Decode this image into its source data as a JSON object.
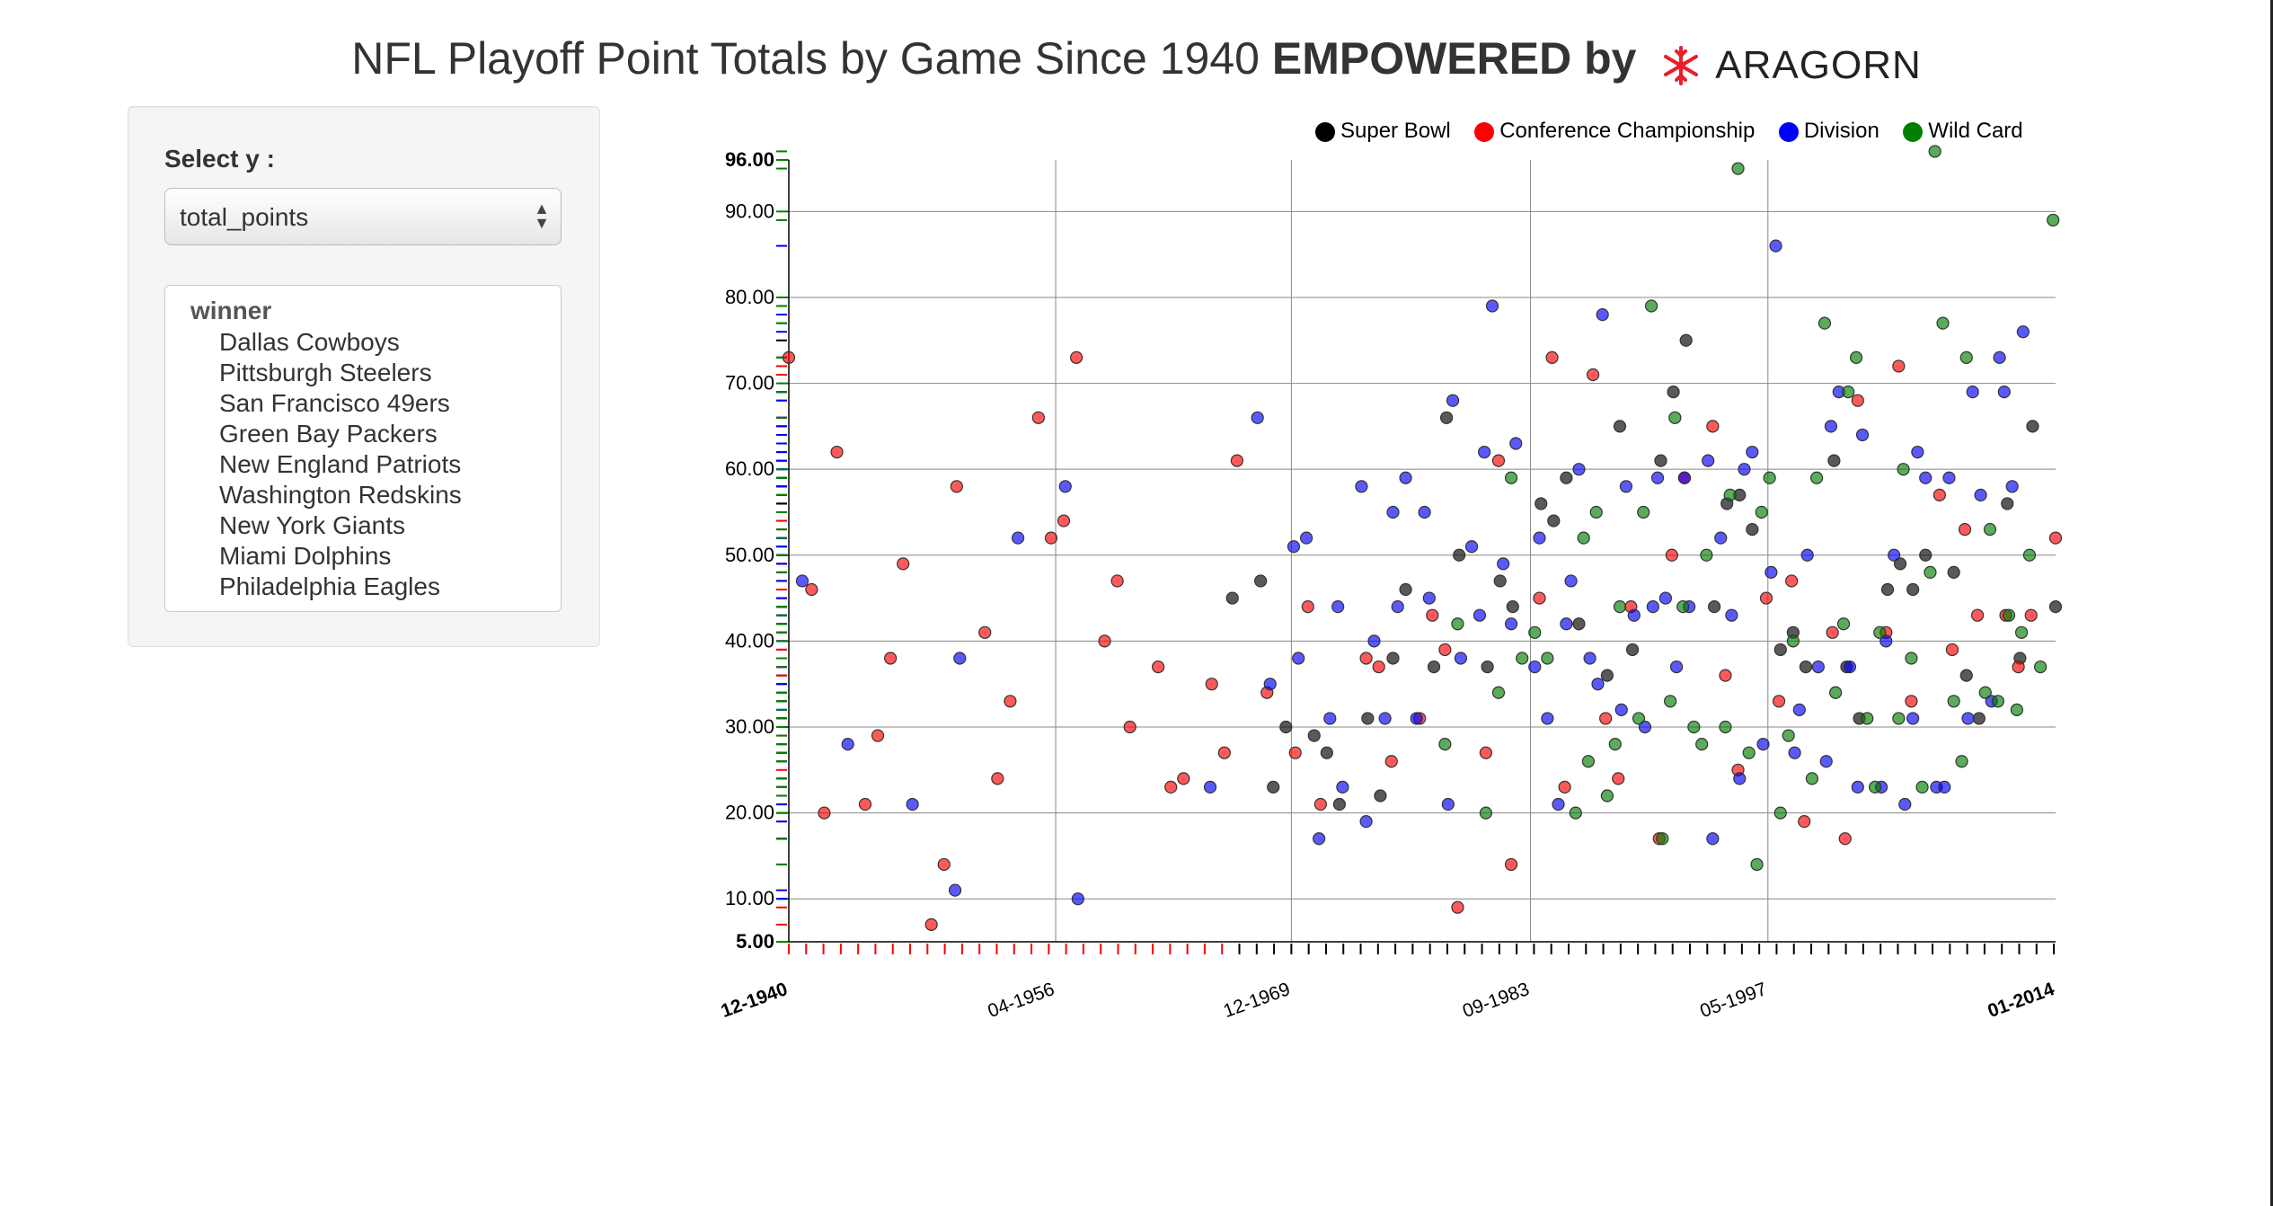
{
  "page": {
    "title_plain": "NFL Playoff Point Totals by Game Since 1940",
    "title_bold": "EMPOWERED by",
    "logo_text": "ARAGORN"
  },
  "controls": {
    "select_label": "Select y :",
    "select_value": "total_points",
    "listbox_group": "winner",
    "listbox_options": [
      "Dallas Cowboys",
      "Pittsburgh Steelers",
      "San Francisco 49ers",
      "Green Bay Packers",
      "New England Patriots",
      "Washington Redskins",
      "New York Giants",
      "Miami Dolphins",
      "Philadelphia Eagles"
    ]
  },
  "colors": {
    "super_bowl": "#000000",
    "conference": "#ff0000",
    "division": "#0000ff",
    "wild_card": "#008000",
    "logo": "#e8202a"
  },
  "chart_data": {
    "type": "scatter",
    "title": "NFL Playoff Point Totals by Game Since 1940",
    "ylim": [
      5,
      96
    ],
    "xlim": [
      1940.9,
      2014.0
    ],
    "y_ticks": [
      "5.00",
      "10.00",
      "20.00",
      "30.00",
      "40.00",
      "50.00",
      "60.00",
      "70.00",
      "80.00",
      "90.00",
      "96.00"
    ],
    "x_ticks": [
      {
        "label": "12-1940",
        "x": 1940.9
      },
      {
        "label": "04-1956",
        "x": 1956.3
      },
      {
        "label": "12-1969",
        "x": 1969.9
      },
      {
        "label": "09-1983",
        "x": 1983.7
      },
      {
        "label": "05-1997",
        "x": 1997.4
      },
      {
        "label": "01-2014",
        "x": 2014.0
      }
    ],
    "legend": {
      "position": "top-right",
      "entries": [
        "Super Bowl",
        "Conference Championship",
        "Division",
        "Wild Card"
      ]
    },
    "series": [
      {
        "name": "Super Bowl",
        "color": "#000000",
        "points": [
          [
            1966.9,
            45
          ],
          [
            1967.9,
            47
          ],
          [
            1968.9,
            23
          ],
          [
            1969.9,
            30
          ],
          [
            1970.9,
            29
          ],
          [
            1971.9,
            27
          ],
          [
            1972.9,
            21
          ],
          [
            1973.9,
            31
          ],
          [
            1974.9,
            22
          ],
          [
            1975.9,
            38
          ],
          [
            1976.9,
            46
          ],
          [
            1977.9,
            37
          ],
          [
            1978.9,
            66
          ],
          [
            1979.9,
            50
          ],
          [
            1980.9,
            37
          ],
          [
            1981.9,
            47
          ],
          [
            1982.9,
            44
          ],
          [
            1983.9,
            56
          ],
          [
            1984.9,
            54
          ],
          [
            1985.9,
            59
          ],
          [
            1986.9,
            42
          ],
          [
            1987.9,
            36
          ],
          [
            1988.9,
            65
          ],
          [
            1989.9,
            39
          ],
          [
            1990.9,
            61
          ],
          [
            1991.9,
            69
          ],
          [
            1992.9,
            75
          ],
          [
            1993.9,
            44
          ],
          [
            1994.9,
            56
          ],
          [
            1995.9,
            57
          ],
          [
            1996.9,
            53
          ],
          [
            1997.9,
            39
          ],
          [
            1998.9,
            41
          ],
          [
            1999.9,
            37
          ],
          [
            2000.9,
            61
          ],
          [
            2001.9,
            37
          ],
          [
            2002.9,
            31
          ],
          [
            2003.9,
            46
          ],
          [
            2004.9,
            49
          ],
          [
            2005.9,
            46
          ],
          [
            2006.9,
            50
          ],
          [
            2007.9,
            48
          ],
          [
            2008.9,
            36
          ],
          [
            2009.9,
            31
          ],
          [
            2010.9,
            56
          ],
          [
            2011.9,
            38
          ],
          [
            2012.9,
            65
          ],
          [
            2013.9,
            44
          ]
        ]
      },
      {
        "name": "Conference Championship",
        "color": "#ff0000",
        "points": [
          [
            1940.9,
            73
          ],
          [
            1941.9,
            46
          ],
          [
            1942.9,
            20
          ],
          [
            1943.9,
            62
          ],
          [
            1944.9,
            21
          ],
          [
            1945.9,
            29
          ],
          [
            1946.9,
            38
          ],
          [
            1947.9,
            49
          ],
          [
            1948.9,
            7
          ],
          [
            1949.9,
            14
          ],
          [
            1950.9,
            58
          ],
          [
            1951.9,
            41
          ],
          [
            1952.9,
            24
          ],
          [
            1953.9,
            33
          ],
          [
            1954.9,
            66
          ],
          [
            1955.9,
            52
          ],
          [
            1956.9,
            54
          ],
          [
            1957.9,
            73
          ],
          [
            1958.9,
            40
          ],
          [
            1959.9,
            47
          ],
          [
            1960.9,
            30
          ],
          [
            1961.9,
            37
          ],
          [
            1962.9,
            23
          ],
          [
            1963.9,
            24
          ],
          [
            1964.9,
            35
          ],
          [
            1965.9,
            27
          ],
          [
            1966.9,
            61
          ],
          [
            1968.9,
            34
          ],
          [
            1969.9,
            27
          ],
          [
            1970.9,
            44
          ],
          [
            1971.9,
            21
          ],
          [
            1973.9,
            38
          ],
          [
            1974.9,
            37
          ],
          [
            1975.9,
            26
          ],
          [
            1976.9,
            31
          ],
          [
            1977.9,
            43
          ],
          [
            1978.9,
            39
          ],
          [
            1979.9,
            9
          ],
          [
            1980.9,
            27
          ],
          [
            1981.9,
            61
          ],
          [
            1982.9,
            14
          ],
          [
            1983.9,
            45
          ],
          [
            1984.9,
            73
          ],
          [
            1985.9,
            23
          ],
          [
            1986.9,
            71
          ],
          [
            1987.9,
            31
          ],
          [
            1988.9,
            24
          ],
          [
            1989.9,
            44
          ],
          [
            1990.9,
            17
          ],
          [
            1991.9,
            50
          ],
          [
            1992.9,
            59
          ],
          [
            1993.9,
            65
          ],
          [
            1994.9,
            36
          ],
          [
            1995.9,
            25
          ],
          [
            1996.9,
            45
          ],
          [
            1997.9,
            33
          ],
          [
            1998.9,
            47
          ],
          [
            1999.9,
            19
          ],
          [
            2000.9,
            41
          ],
          [
            2001.9,
            17
          ],
          [
            2002.9,
            68
          ],
          [
            2003.9,
            41
          ],
          [
            2004.9,
            72
          ],
          [
            2005.9,
            33
          ],
          [
            2006.9,
            57
          ],
          [
            2007.9,
            39
          ],
          [
            2008.9,
            53
          ],
          [
            2009.9,
            43
          ],
          [
            2010.9,
            43
          ],
          [
            2011.9,
            37
          ],
          [
            2012.9,
            43
          ],
          [
            2013.9,
            52
          ]
        ]
      },
      {
        "name": "Division",
        "color": "#0000ff",
        "points": [
          [
            1941.9,
            47
          ],
          [
            1943.9,
            28
          ],
          [
            1947.9,
            21
          ],
          [
            1950.9,
            38
          ],
          [
            1950.9,
            11
          ],
          [
            1953.9,
            52
          ],
          [
            1956.9,
            58
          ],
          [
            1957.9,
            10
          ],
          [
            1964.9,
            23
          ],
          [
            1967.9,
            66
          ],
          [
            1968.9,
            35
          ],
          [
            1969.9,
            38
          ],
          [
            1969.9,
            51
          ],
          [
            1970.9,
            52
          ],
          [
            1971.9,
            17
          ],
          [
            1971.9,
            31
          ],
          [
            1972.9,
            23
          ],
          [
            1972.9,
            44
          ],
          [
            1973.9,
            19
          ],
          [
            1973.9,
            58
          ],
          [
            1974.9,
            40
          ],
          [
            1974.9,
            31
          ],
          [
            1975.9,
            44
          ],
          [
            1975.9,
            55
          ],
          [
            1976.9,
            59
          ],
          [
            1976.9,
            31
          ],
          [
            1977.9,
            45
          ],
          [
            1977.9,
            55
          ],
          [
            1978.9,
            68
          ],
          [
            1978.9,
            21
          ],
          [
            1979.9,
            38
          ],
          [
            1979.9,
            51
          ],
          [
            1980.9,
            62
          ],
          [
            1980.9,
            43
          ],
          [
            1981.9,
            79
          ],
          [
            1981.9,
            49
          ],
          [
            1982.9,
            63
          ],
          [
            1982.9,
            42
          ],
          [
            1983.9,
            52
          ],
          [
            1983.9,
            37
          ],
          [
            1984.9,
            31
          ],
          [
            1984.9,
            21
          ],
          [
            1985.9,
            47
          ],
          [
            1985.9,
            42
          ],
          [
            1986.9,
            60
          ],
          [
            1986.9,
            38
          ],
          [
            1987.9,
            78
          ],
          [
            1987.9,
            35
          ],
          [
            1988.9,
            58
          ],
          [
            1988.9,
            32
          ],
          [
            1989.9,
            43
          ],
          [
            1989.9,
            30
          ],
          [
            1990.9,
            59
          ],
          [
            1990.9,
            44
          ],
          [
            1991.9,
            45
          ],
          [
            1991.9,
            37
          ],
          [
            1992.9,
            44
          ],
          [
            1992.9,
            59
          ],
          [
            1993.9,
            17
          ],
          [
            1993.9,
            61
          ],
          [
            1994.9,
            52
          ],
          [
            1994.9,
            43
          ],
          [
            1995.9,
            60
          ],
          [
            1995.9,
            24
          ],
          [
            1996.9,
            62
          ],
          [
            1996.9,
            28
          ],
          [
            1997.9,
            86
          ],
          [
            1997.9,
            48
          ],
          [
            1998.9,
            32
          ],
          [
            1998.9,
            27
          ],
          [
            1999.9,
            50
          ],
          [
            1999.9,
            37
          ],
          [
            2000.9,
            65
          ],
          [
            2000.9,
            26
          ],
          [
            2001.9,
            69
          ],
          [
            2001.9,
            37
          ],
          [
            2002.9,
            64
          ],
          [
            2002.9,
            23
          ],
          [
            2003.9,
            40
          ],
          [
            2003.9,
            23
          ],
          [
            2004.9,
            50
          ],
          [
            2004.9,
            21
          ],
          [
            2005.9,
            62
          ],
          [
            2005.9,
            31
          ],
          [
            2006.9,
            59
          ],
          [
            2006.9,
            23
          ],
          [
            2007.9,
            59
          ],
          [
            2007.9,
            23
          ],
          [
            2008.9,
            69
          ],
          [
            2008.9,
            31
          ],
          [
            2009.9,
            57
          ],
          [
            2009.9,
            33
          ],
          [
            2010.9,
            69
          ],
          [
            2010.9,
            73
          ],
          [
            2011.9,
            58
          ],
          [
            2011.9,
            76
          ]
        ]
      },
      {
        "name": "Wild Card",
        "color": "#008000",
        "points": [
          [
            1978.9,
            28
          ],
          [
            1979.9,
            42
          ],
          [
            1980.9,
            20
          ],
          [
            1981.9,
            34
          ],
          [
            1982.9,
            59
          ],
          [
            1982.9,
            38
          ],
          [
            1983.9,
            41
          ],
          [
            1984.9,
            38
          ],
          [
            1985.9,
            20
          ],
          [
            1986.9,
            26
          ],
          [
            1986.9,
            52
          ],
          [
            1987.9,
            55
          ],
          [
            1987.9,
            22
          ],
          [
            1988.9,
            44
          ],
          [
            1988.9,
            28
          ],
          [
            1989.9,
            55
          ],
          [
            1989.9,
            31
          ],
          [
            1990.9,
            79
          ],
          [
            1990.9,
            17
          ],
          [
            1991.9,
            66
          ],
          [
            1991.9,
            33
          ],
          [
            1992.9,
            44
          ],
          [
            1992.9,
            30
          ],
          [
            1993.9,
            50
          ],
          [
            1993.9,
            28
          ],
          [
            1994.9,
            57
          ],
          [
            1994.9,
            30
          ],
          [
            1995.9,
            95
          ],
          [
            1995.9,
            27
          ],
          [
            1996.9,
            55
          ],
          [
            1996.9,
            14
          ],
          [
            1997.9,
            59
          ],
          [
            1997.9,
            20
          ],
          [
            1998.9,
            40
          ],
          [
            1998.9,
            29
          ],
          [
            1999.9,
            59
          ],
          [
            1999.9,
            24
          ],
          [
            2000.9,
            77
          ],
          [
            2000.9,
            34
          ],
          [
            2001.9,
            69
          ],
          [
            2001.9,
            42
          ],
          [
            2002.9,
            73
          ],
          [
            2002.9,
            31
          ],
          [
            2003.9,
            41
          ],
          [
            2003.9,
            23
          ],
          [
            2004.9,
            60
          ],
          [
            2004.9,
            31
          ],
          [
            2005.9,
            38
          ],
          [
            2005.9,
            23
          ],
          [
            2006.9,
            97
          ],
          [
            2006.9,
            48
          ],
          [
            2007.9,
            77
          ],
          [
            2007.9,
            33
          ],
          [
            2008.9,
            73
          ],
          [
            2008.9,
            26
          ],
          [
            2009.9,
            53
          ],
          [
            2009.9,
            34
          ],
          [
            2010.9,
            33
          ],
          [
            2010.9,
            43
          ],
          [
            2011.9,
            41
          ],
          [
            2011.9,
            32
          ],
          [
            2012.9,
            50
          ],
          [
            2012.9,
            37
          ],
          [
            2013.9,
            89
          ]
        ]
      }
    ]
  }
}
